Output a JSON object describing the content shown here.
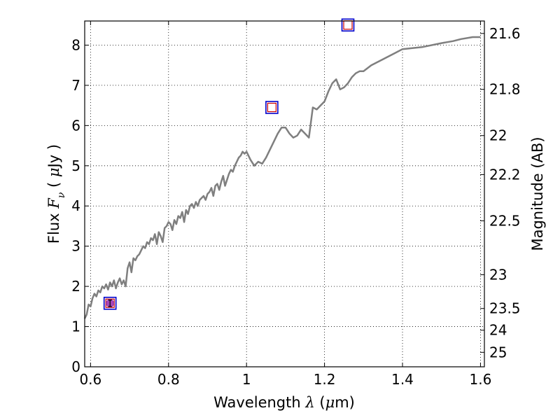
{
  "chart_data": {
    "type": "line",
    "xlabel_prefix": "Wavelength",
    "xlabel_symbol": "λ",
    "xlabel_unit_open": " (",
    "xlabel_unit_symbol": "μ",
    "xlabel_unit_rest": "m)",
    "ylabel_prefix": "Flux",
    "ylabel_symbol": "F",
    "ylabel_subscript": "ν",
    "ylabel_unit_open": "(",
    "ylabel_unit_symbol": "μ",
    "ylabel_unit_rest": "Jy",
    "ylabel_unit_close": ")",
    "y2label": "Magnitude (AB)",
    "xlim": [
      0.585,
      1.61
    ],
    "ylim": [
      0,
      8.6
    ],
    "grid": true,
    "xticks": [
      0.6,
      0.8,
      1.0,
      1.2,
      1.4,
      1.6
    ],
    "xtick_labels": [
      "0.6",
      "0.8",
      "1",
      "1.2",
      "1.4",
      "1.6"
    ],
    "yticks": [
      0,
      1,
      2,
      3,
      4,
      5,
      6,
      7,
      8
    ],
    "ytick_labels": [
      "0",
      "1",
      "2",
      "3",
      "4",
      "5",
      "6",
      "7",
      "8"
    ],
    "y2ticks": [
      {
        "label": "21.6",
        "flux": 8.29
      },
      {
        "label": "21.8",
        "flux": 6.9
      },
      {
        "label": "22",
        "flux": 5.75
      },
      {
        "label": "22.2",
        "flux": 4.78
      },
      {
        "label": "22.5",
        "flux": 3.63
      },
      {
        "label": "23",
        "flux": 2.29
      },
      {
        "label": "23.5",
        "flux": 1.45
      },
      {
        "label": "24",
        "flux": 0.91
      },
      {
        "label": "25",
        "flux": 0.36
      }
    ],
    "series": [
      {
        "type": "line",
        "color": "#7f7f7f",
        "x": [
          0.585,
          0.59,
          0.595,
          0.6,
          0.605,
          0.61,
          0.615,
          0.62,
          0.625,
          0.63,
          0.635,
          0.64,
          0.645,
          0.65,
          0.655,
          0.66,
          0.665,
          0.67,
          0.675,
          0.68,
          0.685,
          0.69,
          0.695,
          0.7,
          0.705,
          0.71,
          0.715,
          0.72,
          0.725,
          0.73,
          0.735,
          0.74,
          0.745,
          0.75,
          0.755,
          0.76,
          0.765,
          0.77,
          0.775,
          0.78,
          0.785,
          0.79,
          0.795,
          0.8,
          0.805,
          0.81,
          0.815,
          0.82,
          0.825,
          0.83,
          0.835,
          0.84,
          0.845,
          0.85,
          0.855,
          0.86,
          0.865,
          0.87,
          0.875,
          0.88,
          0.885,
          0.89,
          0.895,
          0.9,
          0.905,
          0.91,
          0.915,
          0.92,
          0.925,
          0.93,
          0.935,
          0.94,
          0.945,
          0.95,
          0.955,
          0.96,
          0.965,
          0.97,
          0.975,
          0.98,
          0.985,
          0.99,
          0.995,
          1.0,
          1.01,
          1.02,
          1.03,
          1.04,
          1.05,
          1.06,
          1.07,
          1.08,
          1.09,
          1.1,
          1.11,
          1.12,
          1.13,
          1.14,
          1.15,
          1.16,
          1.17,
          1.18,
          1.19,
          1.2,
          1.21,
          1.22,
          1.23,
          1.24,
          1.25,
          1.26,
          1.27,
          1.28,
          1.29,
          1.3,
          1.32,
          1.35,
          1.38,
          1.4,
          1.45,
          1.5,
          1.53,
          1.55,
          1.58,
          1.6
        ],
        "y": [
          1.2,
          1.3,
          1.55,
          1.5,
          1.7,
          1.82,
          1.75,
          1.9,
          1.85,
          2.0,
          1.95,
          2.05,
          1.92,
          2.1,
          2.0,
          2.15,
          1.95,
          2.1,
          2.2,
          2.05,
          2.15,
          2.0,
          2.45,
          2.6,
          2.35,
          2.7,
          2.65,
          2.75,
          2.8,
          2.9,
          3.0,
          2.95,
          3.1,
          3.05,
          3.2,
          3.15,
          3.3,
          3.05,
          3.35,
          3.25,
          3.1,
          3.45,
          3.5,
          3.6,
          3.55,
          3.4,
          3.65,
          3.55,
          3.75,
          3.7,
          3.85,
          3.6,
          3.9,
          3.8,
          4.0,
          4.05,
          3.95,
          4.1,
          4.0,
          4.15,
          4.2,
          4.25,
          4.15,
          4.3,
          4.35,
          4.45,
          4.25,
          4.5,
          4.55,
          4.4,
          4.6,
          4.75,
          4.5,
          4.65,
          4.8,
          4.9,
          4.85,
          5.0,
          5.1,
          5.2,
          5.25,
          5.35,
          5.3,
          5.35,
          5.15,
          5.0,
          5.1,
          5.05,
          5.2,
          5.4,
          5.6,
          5.8,
          5.95,
          5.95,
          5.8,
          5.7,
          5.75,
          5.9,
          5.8,
          5.7,
          6.45,
          6.4,
          6.5,
          6.6,
          6.85,
          7.05,
          7.15,
          6.9,
          6.95,
          7.05,
          7.2,
          7.3,
          7.35,
          7.35,
          7.5,
          7.65,
          7.8,
          7.9,
          7.95,
          8.05,
          8.1,
          8.15,
          8.2,
          8.2
        ]
      },
      {
        "type": "points",
        "marker": "square",
        "colors": [
          "#0000cc",
          "#cc0000"
        ],
        "x": [
          0.65,
          1.065,
          1.26
        ],
        "y": [
          1.58,
          6.45,
          8.5
        ]
      },
      {
        "type": "errorbar",
        "color": "#9b30b0",
        "x": [
          0.65
        ],
        "y": [
          1.58
        ],
        "yerr": [
          0.08
        ]
      }
    ]
  }
}
